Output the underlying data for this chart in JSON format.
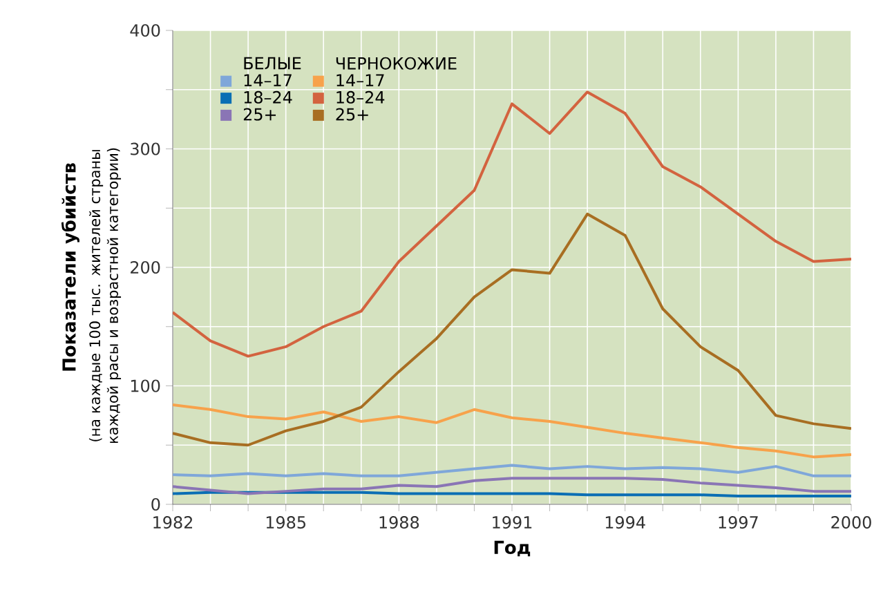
{
  "chart_data": {
    "type": "line",
    "x": [
      1982,
      1983,
      1984,
      1985,
      1986,
      1987,
      1988,
      1989,
      1990,
      1991,
      1992,
      1993,
      1994,
      1995,
      1996,
      1997,
      1998,
      1999,
      2000
    ],
    "xlabel": "Год",
    "ylabel": "**Показатели убийств**",
    "annotations": [
      "БЕЛЫЕ",
      "ЧЕРНОКОЖИЕ",
      "(на каждые 100 тыс. жителей страны каждой расы и возрастной категории)"
    ],
    "series": [
      {
        "name": "14–17",
        "color": "#7fa7d9",
        "values": [
          25,
          24,
          26,
          24,
          26,
          24,
          24,
          27,
          30,
          33,
          30,
          32,
          30,
          31,
          30,
          27,
          32,
          24,
          24
        ]
      },
      {
        "name": "18–24",
        "color": "#0a6eb4",
        "values": [
          9,
          10,
          10,
          10,
          10,
          10,
          9,
          9,
          9,
          9,
          9,
          8,
          8,
          8,
          8,
          7,
          7,
          7,
          7
        ]
      },
      {
        "name": "25+",
        "color": "#8a75b5",
        "values": [
          15,
          12,
          9,
          11,
          13,
          13,
          16,
          15,
          20,
          22,
          22,
          22,
          22,
          21,
          18,
          16,
          14,
          11,
          11
        ]
      },
      {
        "name": "14–17",
        "color": "#f7a24b",
        "values": [
          84,
          80,
          74,
          72,
          78,
          70,
          74,
          69,
          80,
          73,
          70,
          65,
          60,
          56,
          52,
          48,
          45,
          40,
          42
        ]
      },
      {
        "name": "18–24",
        "color": "#d3633f",
        "values": [
          162,
          138,
          125,
          133,
          150,
          163,
          205,
          235,
          265,
          338,
          313,
          348,
          330,
          285,
          268,
          245,
          222,
          205,
          207
        ]
      },
      {
        "name": "25+",
        "color": "#a86e22",
        "values": [
          60,
          52,
          50,
          62,
          70,
          82,
          112,
          140,
          175,
          198,
          195,
          245,
          227,
          165,
          133,
          113,
          75,
          68,
          64
        ]
      }
    ],
    "xlim": [
      1982,
      2000
    ],
    "xticks": [
      1982,
      {
        "value": 1983,
        "label": null
      },
      {
        "value": 1984,
        "label": null
      },
      1985,
      {
        "value": 1986,
        "label": null
      },
      {
        "value": 1987,
        "label": null
      },
      1988,
      {
        "value": 1989,
        "label": null
      },
      {
        "value": 1990,
        "label": null
      },
      1991,
      {
        "value": 1992,
        "label": null
      },
      {
        "value": 1993,
        "label": null
      },
      1994,
      {
        "value": 1995,
        "label": null
      },
      {
        "value": 1996,
        "label": null
      },
      1997,
      {
        "value": 1998,
        "label": null
      },
      {
        "value": 1999,
        "label": null
      },
      2000
    ],
    "ylim": [
      0,
      400
    ],
    "yticks": [
      0,
      {
        "value": 50,
        "label": null
      },
      100,
      {
        "value": 150,
        "label": null
      },
      200,
      {
        "value": 250,
        "label": null
      },
      300,
      {
        "value": 350,
        "label": null
      },
      400
    ],
    "grid": true,
    "legend": "top left",
    "marker": "none",
    "line_style": "solid"
  }
}
